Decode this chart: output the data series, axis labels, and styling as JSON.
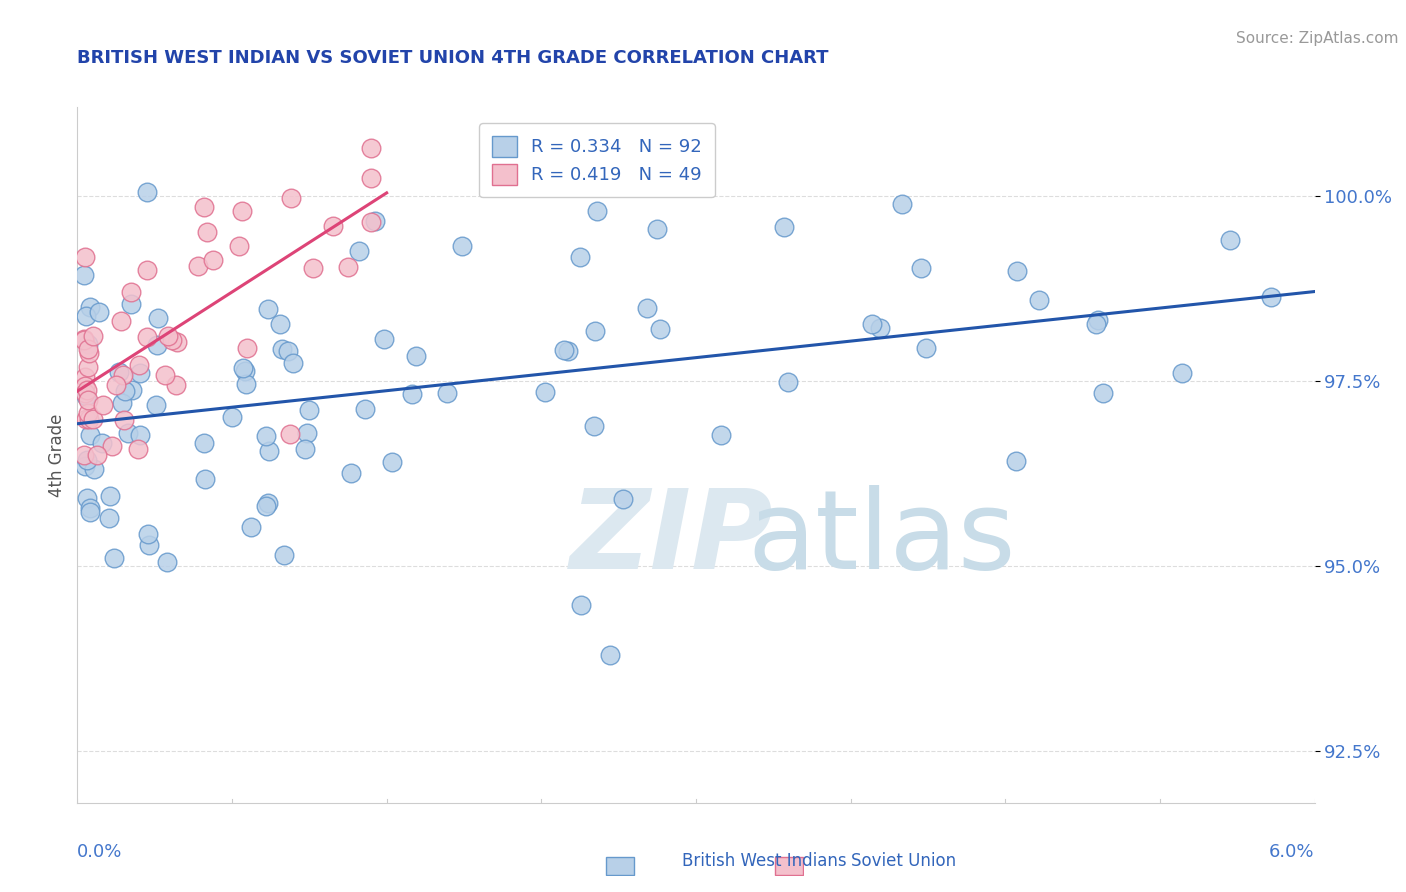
{
  "title": "BRITISH WEST INDIAN VS SOVIET UNION 4TH GRADE CORRELATION CHART",
  "source": "Source: ZipAtlas.com",
  "ylabel": "4th Grade",
  "xmin": 0.0,
  "xmax": 6.0,
  "ymin": 91.8,
  "ymax": 101.2,
  "yticks": [
    92.5,
    95.0,
    97.5,
    100.0
  ],
  "ytick_labels": [
    "92.5%",
    "95.0%",
    "97.5%",
    "100.0%"
  ],
  "blue_label": "British West Indians",
  "pink_label": "Soviet Union",
  "blue_R": 0.334,
  "blue_N": 92,
  "pink_R": 0.419,
  "pink_N": 49,
  "blue_color": "#b8d0e8",
  "blue_edge": "#6699cc",
  "pink_color": "#f4c0cc",
  "pink_edge": "#e07090",
  "blue_line_color": "#2255aa",
  "pink_line_color": "#dd4477",
  "legend_text_color": "#3366bb",
  "title_color": "#2244aa",
  "grid_color": "#dddddd",
  "tick_color": "#4477cc"
}
